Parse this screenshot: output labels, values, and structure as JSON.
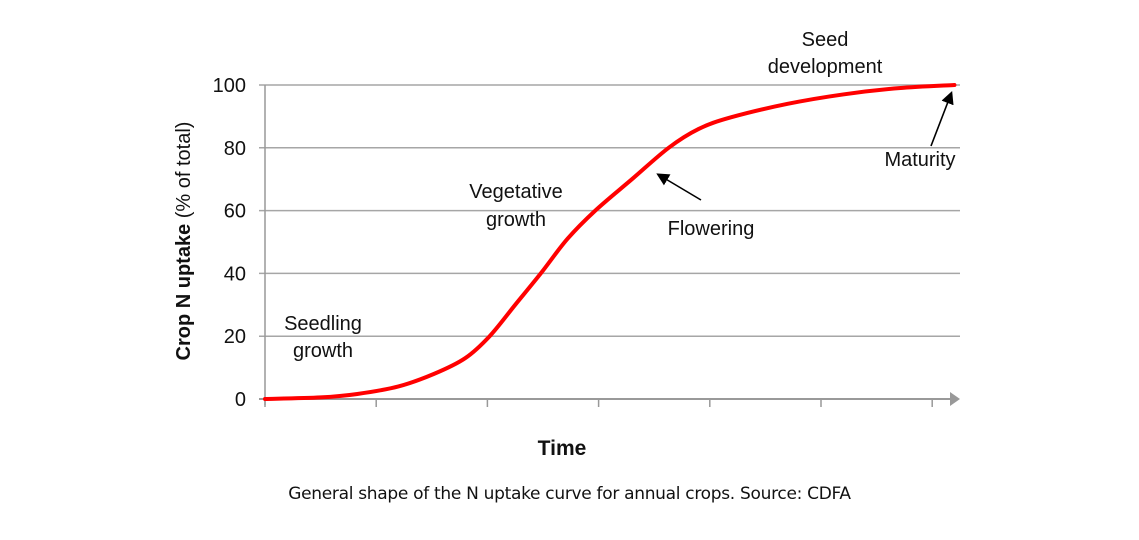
{
  "chart_data": {
    "type": "line",
    "xlabel": "Time",
    "ylabel_bold": "Crop N uptake",
    "ylabel_rest": " (% of total)",
    "ylim": [
      0,
      100
    ],
    "yticks": [
      0,
      20,
      40,
      60,
      80,
      100
    ],
    "x_tick_count": 7,
    "grid": "horizontal",
    "series": [
      {
        "color": "#ff0000",
        "x": [
          0,
          0.5,
          0.83,
          1.2,
          1.52,
          1.8,
          2.02,
          2.25,
          2.48,
          2.72,
          2.97,
          3.3,
          3.63,
          3.9,
          4.19,
          4.7,
          5.2,
          5.7,
          6.2
        ],
        "y": [
          0,
          0.5,
          1.6,
          4,
          8,
          13,
          20,
          30,
          40,
          51,
          60,
          70,
          80,
          86,
          89.7,
          94,
          97,
          99,
          100
        ]
      }
    ],
    "annotations": [
      {
        "id": "seedling",
        "lines": [
          "Seedling",
          "growth"
        ]
      },
      {
        "id": "vegetative",
        "lines": [
          "Vegetative",
          "growth"
        ]
      },
      {
        "id": "flowering",
        "lines": [
          "Flowering"
        ]
      },
      {
        "id": "seed",
        "lines": [
          "Seed",
          "development"
        ]
      },
      {
        "id": "maturity",
        "lines": [
          "Maturity"
        ]
      }
    ],
    "axis_color": "#999999",
    "grid_color": "#a6a6a6"
  },
  "caption": "General shape of the N uptake curve for annual crops. Source: CDFA"
}
